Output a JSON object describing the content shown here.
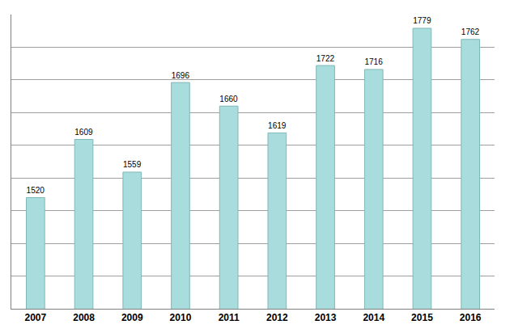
{
  "chart_data": {
    "type": "bar",
    "categories": [
      "2007",
      "2008",
      "2009",
      "2010",
      "2011",
      "2012",
      "2013",
      "2014",
      "2015",
      "2016"
    ],
    "values": [
      1520,
      1609,
      1559,
      1696,
      1660,
      1619,
      1722,
      1716,
      1779,
      1762
    ],
    "color": "#a9dcdc",
    "ylim": [
      1350,
      1800
    ],
    "yticks": [
      1350,
      1400,
      1450,
      1500,
      1550,
      1600,
      1650,
      1700,
      1750,
      1800
    ],
    "grid": true,
    "data_labels": true,
    "tick_labels": "x"
  }
}
